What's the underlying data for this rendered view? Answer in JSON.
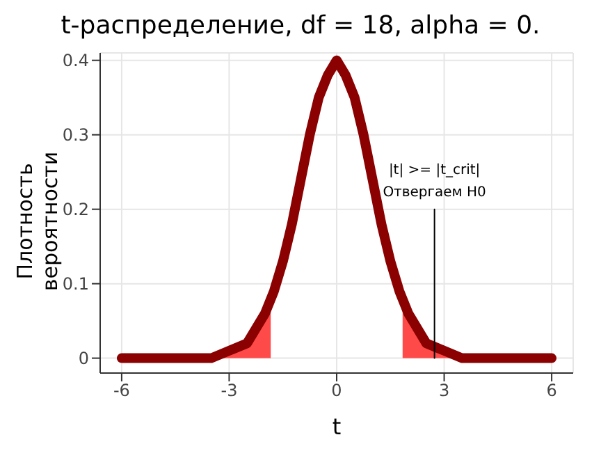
{
  "chart_data": {
    "type": "line",
    "title": "t-распределение, df = 18, alpha = 0.",
    "xlabel": "t",
    "ylabel": "Плотность\nвероятности",
    "xlim": [
      -6.6,
      6.6
    ],
    "ylim": [
      -0.02,
      0.41
    ],
    "xticks": [
      -6,
      -3,
      0,
      3,
      6
    ],
    "yticks": [
      0,
      0.1,
      0.2,
      0.3,
      0.4
    ],
    "grid": true,
    "marker": "none",
    "series": [
      {
        "type": "area",
        "color": "#ff4040",
        "x": [
          -6,
          -4,
          -3,
          -2.5,
          -2,
          -1.84
        ],
        "values": [
          0,
          0,
          0.01,
          0.02,
          0.06,
          0.08
        ]
      },
      {
        "type": "area",
        "color": "#ff4040",
        "x": [
          1.84,
          2,
          2.5,
          3,
          4,
          6
        ],
        "values": [
          0.08,
          0.06,
          0.02,
          0.01,
          0,
          0
        ]
      },
      {
        "color": "#8b0000",
        "x": [
          -6,
          -4,
          -3.5,
          -3,
          -2.5,
          -2,
          -1.75,
          -1.5,
          -1.25,
          -1,
          -0.75,
          -0.5,
          -0.25,
          0,
          0.25,
          0.5,
          0.75,
          1,
          1.25,
          1.5,
          1.75,
          2,
          2.5,
          3,
          3.5,
          4,
          6
        ],
        "values": [
          0,
          0,
          0,
          0.01,
          0.02,
          0.06,
          0.09,
          0.13,
          0.18,
          0.24,
          0.3,
          0.35,
          0.38,
          0.4,
          0.38,
          0.35,
          0.3,
          0.24,
          0.18,
          0.13,
          0.09,
          0.06,
          0.02,
          0.01,
          0,
          0,
          0
        ]
      },
      {
        "color": "#000000",
        "x": [
          2.73,
          2.73
        ],
        "values": [
          0,
          0.2
        ]
      }
    ],
    "annotations": [
      "|t| >= |t_crit|",
      "Отвергаем H0"
    ]
  }
}
